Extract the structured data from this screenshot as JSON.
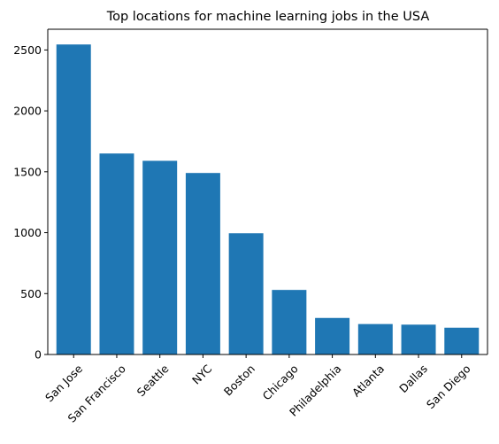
{
  "chart_data": {
    "type": "bar",
    "title": "Top locations for machine learning jobs in the USA",
    "xlabel": "",
    "ylabel": "",
    "categories": [
      "San Jose",
      "San Francisco",
      "Seattle",
      "NYC",
      "Boston",
      "Chicago",
      "Philadelphia",
      "Atlanta",
      "Dallas",
      "San Diego"
    ],
    "values": [
      2545,
      1650,
      1590,
      1490,
      995,
      530,
      300,
      250,
      245,
      220
    ],
    "ylim": [
      0,
      2670
    ],
    "yticks": [
      0,
      500,
      1000,
      1500,
      2000,
      2500
    ],
    "bar_color": "#1f77b4",
    "grid": false,
    "legend": "none",
    "x_tick_rotation": "45 degrees"
  }
}
